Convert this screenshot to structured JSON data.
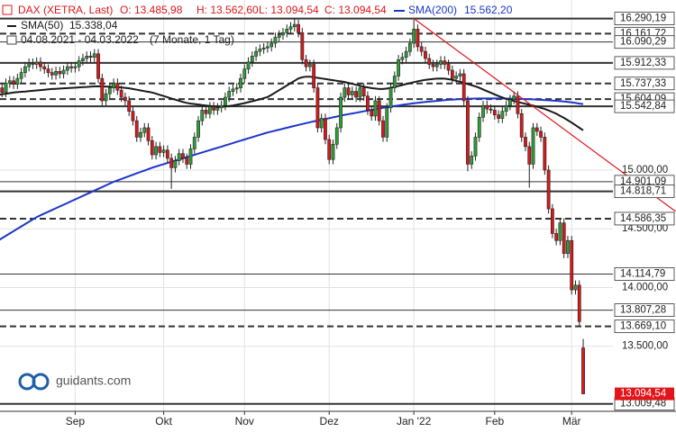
{
  "chart_data": {
    "type": "candlestick",
    "title": "DAX (XETRA, Last)",
    "quote_labels": [
      "O: 13.485,98",
      "H: 13.562,60",
      "L: 13.094,54",
      "C: 13.094,54"
    ],
    "range_label": "04.08.2021 - 04.03.2022",
    "range_note": "(7 Monate, 1 Tag)",
    "watermark": "guidants.com",
    "title_color": "#e0161b",
    "up_color": "#2f9e3a",
    "down_color": "#d7191c",
    "categories": [
      null,
      null,
      null,
      null,
      null,
      null,
      null,
      null,
      null,
      null,
      null,
      null,
      null,
      null,
      null,
      null,
      null,
      null,
      null,
      null,
      "Sep",
      null,
      null,
      null,
      null,
      null,
      null,
      null,
      null,
      null,
      null,
      null,
      null,
      null,
      null,
      null,
      null,
      null,
      null,
      null,
      null,
      null,
      null,
      "Okt",
      null,
      null,
      null,
      null,
      null,
      null,
      null,
      null,
      null,
      null,
      null,
      null,
      null,
      null,
      null,
      null,
      null,
      null,
      null,
      null,
      "Nov",
      null,
      null,
      null,
      null,
      null,
      null,
      null,
      null,
      null,
      null,
      null,
      null,
      null,
      null,
      null,
      null,
      null,
      null,
      null,
      null,
      null,
      "Dez",
      null,
      null,
      null,
      null,
      null,
      null,
      null,
      null,
      null,
      null,
      null,
      null,
      null,
      null,
      null,
      null,
      null,
      null,
      null,
      null,
      null,
      "Jan '22",
      null,
      null,
      null,
      null,
      null,
      null,
      null,
      null,
      null,
      null,
      null,
      null,
      null,
      null,
      null,
      null,
      null,
      null,
      null,
      null,
      "Feb",
      null,
      null,
      null,
      null,
      null,
      null,
      null,
      null,
      null,
      null,
      null,
      null,
      null,
      null,
      null,
      null,
      null,
      null,
      null,
      "Mär",
      null,
      null,
      null
    ],
    "open": [
      15720,
      15700,
      15660,
      15740,
      15760,
      15730,
      15780,
      15830,
      15880,
      15910,
      15900,
      15920,
      15880,
      15860,
      15830,
      15810,
      15840,
      15820,
      15850,
      15880,
      15870,
      15880,
      15930,
      15950,
      15970,
      15960,
      15990,
      15780,
      15590,
      15650,
      15700,
      15740,
      15680,
      15620,
      15590,
      15500,
      15420,
      15280,
      15320,
      15360,
      15250,
      15130,
      15200,
      15150,
      15170,
      15100,
      15020,
      15080,
      15140,
      15100,
      15050,
      15180,
      15280,
      15420,
      15510,
      15480,
      15540,
      15510,
      15530,
      15550,
      15620,
      15670,
      15690,
      15700,
      15780,
      15860,
      15920,
      15970,
      16010,
      16030,
      16040,
      16050,
      16080,
      16130,
      16150,
      16170,
      16200,
      16220,
      16240,
      16170,
      15940,
      15880,
      15900,
      15700,
      15360,
      15440,
      15260,
      15090,
      15220,
      15360,
      15620,
      15700,
      15640,
      15670,
      15620,
      15700,
      15630,
      15510,
      15460,
      15590,
      15420,
      15280,
      15530,
      15700,
      15800,
      15940,
      15960,
      16010,
      16080,
      16200,
      16050,
      16010,
      15950,
      15900,
      15880,
      15900,
      15930,
      15900,
      15850,
      15780,
      15800,
      15820,
      15590,
      15050,
      15120,
      15280,
      15450,
      15550,
      15520,
      15510,
      15470,
      15440,
      15500,
      15550,
      15600,
      15630,
      15480,
      15280,
      15200,
      15050,
      15360,
      15330,
      15280,
      15000,
      14670,
      14460,
      14400,
      14550,
      14290,
      14400,
      13980,
      14020,
      13485.98
    ],
    "high": [
      15760,
      15740,
      15780,
      15800,
      15800,
      15820,
      15870,
      15920,
      15950,
      15950,
      15960,
      15960,
      15920,
      15900,
      15870,
      15880,
      15880,
      15890,
      15920,
      15920,
      15920,
      15970,
      15990,
      16010,
      16010,
      16030,
      16030,
      15820,
      15690,
      15740,
      15780,
      15780,
      15720,
      15660,
      15630,
      15540,
      15460,
      15360,
      15400,
      15400,
      15290,
      15240,
      15240,
      15210,
      15210,
      15140,
      15120,
      15180,
      15180,
      15140,
      15220,
      15320,
      15460,
      15550,
      15550,
      15580,
      15580,
      15570,
      15590,
      15660,
      15710,
      15730,
      15740,
      15820,
      15900,
      15960,
      16010,
      16050,
      16070,
      16080,
      16090,
      16120,
      16170,
      16190,
      16210,
      16240,
      16260,
      16290.19,
      16280,
      16210,
      15980,
      15940,
      15940,
      15740,
      15480,
      15480,
      15300,
      15260,
      15400,
      15660,
      15740,
      15740,
      15710,
      15710,
      15740,
      15740,
      15670,
      15550,
      15630,
      15630,
      15460,
      15570,
      15740,
      15840,
      15980,
      16000,
      16050,
      16120,
      16280,
      16240,
      16090,
      16050,
      15990,
      15940,
      15940,
      15970,
      15970,
      15940,
      15890,
      15840,
      15860,
      15860,
      15630,
      15160,
      15320,
      15490,
      15590,
      15590,
      15560,
      15550,
      15510,
      15540,
      15590,
      15640,
      15670,
      15670,
      15520,
      15320,
      15240,
      15400,
      15400,
      15370,
      15320,
      15040,
      14710,
      14500,
      14590,
      14590,
      14440,
      14440,
      14060,
      14060,
      13562.6
    ],
    "low": [
      15660,
      15620,
      15620,
      15700,
      15690,
      15690,
      15740,
      15790,
      15840,
      15860,
      15860,
      15840,
      15820,
      15790,
      15770,
      15770,
      15780,
      15780,
      15810,
      15830,
      15830,
      15840,
      15890,
      15910,
      15920,
      15920,
      15740,
      15550,
      15550,
      15610,
      15660,
      15640,
      15580,
      15550,
      15460,
      15380,
      15240,
      15240,
      15280,
      15210,
      15090,
      15090,
      15110,
      15110,
      15060,
      14840,
      14980,
      15040,
      15060,
      15010,
      15010,
      15140,
      15240,
      15380,
      15440,
      15440,
      15470,
      15470,
      15490,
      15510,
      15580,
      15630,
      15650,
      15660,
      15740,
      15820,
      15880,
      15930,
      15970,
      15990,
      16000,
      16010,
      16040,
      16090,
      16110,
      16130,
      16160,
      16180,
      16130,
      15900,
      15840,
      15840,
      15660,
      15320,
      15320,
      15220,
      15050,
      15050,
      15180,
      15320,
      15580,
      15600,
      15600,
      15580,
      15580,
      15590,
      15470,
      15420,
      15420,
      15380,
      15240,
      15240,
      15490,
      15660,
      15760,
      15900,
      15920,
      15970,
      16040,
      16010,
      15970,
      15910,
      15860,
      15840,
      15840,
      15860,
      15860,
      15810,
      15740,
      15740,
      15760,
      15550,
      14990,
      15010,
      15080,
      15240,
      15410,
      15480,
      15480,
      15430,
      15400,
      15400,
      15460,
      15510,
      15560,
      15440,
      15240,
      15160,
      14850,
      15010,
      15290,
      15240,
      14960,
      14630,
      14420,
      14360,
      14360,
      14250,
      14250,
      13940,
      13940,
      13670,
      13094.54
    ],
    "close": [
      15700,
      15660,
      15740,
      15760,
      15730,
      15780,
      15830,
      15880,
      15910,
      15900,
      15920,
      15880,
      15860,
      15830,
      15810,
      15840,
      15820,
      15850,
      15880,
      15870,
      15880,
      15930,
      15950,
      15970,
      15960,
      15990,
      15780,
      15590,
      15650,
      15700,
      15740,
      15680,
      15620,
      15590,
      15500,
      15420,
      15280,
      15320,
      15360,
      15250,
      15130,
      15200,
      15150,
      15170,
      15100,
      15020,
      15080,
      15140,
      15100,
      15050,
      15180,
      15280,
      15420,
      15510,
      15480,
      15540,
      15510,
      15530,
      15550,
      15620,
      15670,
      15690,
      15700,
      15780,
      15860,
      15920,
      15970,
      16010,
      16030,
      16040,
      16050,
      16080,
      16130,
      16150,
      16170,
      16200,
      16220,
      16240,
      16170,
      15940,
      15880,
      15900,
      15700,
      15360,
      15440,
      15260,
      15090,
      15220,
      15360,
      15620,
      15700,
      15640,
      15670,
      15620,
      15700,
      15630,
      15510,
      15460,
      15590,
      15420,
      15280,
      15530,
      15700,
      15800,
      15940,
      15960,
      16010,
      16080,
      16200,
      16050,
      16010,
      15950,
      15900,
      15880,
      15900,
      15930,
      15900,
      15850,
      15780,
      15800,
      15820,
      15590,
      15050,
      15120,
      15280,
      15450,
      15550,
      15520,
      15510,
      15470,
      15440,
      15500,
      15550,
      15600,
      15630,
      15480,
      15280,
      15200,
      15050,
      15360,
      15330,
      15280,
      15000,
      14670,
      14460,
      14400,
      14550,
      14290,
      14400,
      13980,
      14020,
      13710,
      13094.54
    ],
    "indicators": [
      {
        "name": "SMA(200)",
        "value_label": "15.562,20",
        "color": "#1c35c9",
        "values": [
          14400,
          14420,
          14440,
          14460,
          14480,
          14500,
          14520,
          14540,
          14560,
          14580,
          14600,
          14615,
          14630,
          14645,
          14660,
          14675,
          14690,
          14705,
          14720,
          14735,
          14750,
          14765,
          14780,
          14795,
          14810,
          14825,
          14840,
          14855,
          14870,
          14885,
          14900,
          14912,
          14924,
          14936,
          14948,
          14960,
          14972,
          14984,
          14996,
          15008,
          15020,
          15030,
          15040,
          15050,
          15060,
          15070,
          15080,
          15090,
          15100,
          15110,
          15120,
          15130,
          15140,
          15150,
          15160,
          15170,
          15180,
          15190,
          15200,
          15210,
          15220,
          15230,
          15240,
          15250,
          15260,
          15270,
          15280,
          15290,
          15300,
          15310,
          15320,
          15328,
          15336,
          15344,
          15352,
          15360,
          15368,
          15376,
          15384,
          15392,
          15400,
          15407,
          15414,
          15421,
          15428,
          15435,
          15442,
          15449,
          15456,
          15463,
          15470,
          15476,
          15482,
          15488,
          15494,
          15500,
          15506,
          15512,
          15518,
          15524,
          15530,
          15535,
          15540,
          15545,
          15550,
          15555,
          15560,
          15564,
          15568,
          15572,
          15576,
          15580,
          15583,
          15586,
          15589,
          15592,
          15595,
          15598,
          15600,
          15602,
          15604,
          15606,
          15607,
          15608,
          15609,
          15610,
          15610,
          15610,
          15610,
          15610,
          15610,
          15610,
          15609,
          15608,
          15607,
          15606,
          15605,
          15604,
          15603,
          15602,
          15600,
          15598,
          15596,
          15594,
          15592,
          15590,
          15587,
          15584,
          15580,
          15576,
          15571,
          15566,
          15562.2
        ]
      },
      {
        "name": "SMA(50)",
        "value_label": "15.338,04",
        "color": "#1a1a1a",
        "values": [
          15640,
          15645,
          15650,
          15655,
          15660,
          15663,
          15666,
          15669,
          15672,
          15675,
          15678,
          15681,
          15684,
          15687,
          15690,
          15692,
          15694,
          15696,
          15698,
          15700,
          15702,
          15704,
          15706,
          15708,
          15710,
          15712,
          15713,
          15712,
          15711,
          15710,
          15708,
          15706,
          15703,
          15700,
          15696,
          15690,
          15684,
          15678,
          15672,
          15666,
          15660,
          15650,
          15640,
          15630,
          15620,
          15610,
          15600,
          15590,
          15580,
          15572,
          15566,
          15562,
          15558,
          15554,
          15550,
          15546,
          15543,
          15540,
          15540,
          15542,
          15545,
          15550,
          15556,
          15563,
          15570,
          15578,
          15586,
          15594,
          15602,
          15612,
          15622,
          15640,
          15660,
          15680,
          15700,
          15720,
          15740,
          15760,
          15780,
          15790,
          15795,
          15795,
          15790,
          15785,
          15780,
          15775,
          15770,
          15765,
          15760,
          15755,
          15750,
          15742,
          15734,
          15726,
          15718,
          15710,
          15704,
          15698,
          15694,
          15690,
          15690,
          15694,
          15700,
          15708,
          15716,
          15724,
          15732,
          15740,
          15748,
          15756,
          15762,
          15768,
          15772,
          15776,
          15778,
          15780,
          15778,
          15774,
          15768,
          15760,
          15752,
          15742,
          15732,
          15722,
          15712,
          15700,
          15686,
          15672,
          15658,
          15644,
          15630,
          15618,
          15606,
          15596,
          15588,
          15580,
          15572,
          15564,
          15556,
          15548,
          15540,
          15530,
          15520,
          15508,
          15494,
          15480,
          15462,
          15444,
          15424,
          15404,
          15382,
          15360,
          15338.04
        ]
      }
    ],
    "trendline": {
      "color": "#e0161b",
      "x": [
        108,
        176
      ],
      "y": [
        16290.19,
        14648
      ]
    },
    "levels": [
      {
        "value": 16290.19,
        "label": "16.290,19",
        "style": "solid"
      },
      {
        "value": 16161.72,
        "label": "16.161,72",
        "style": "dashed"
      },
      {
        "value": 16090.29,
        "label": "16.090,29",
        "style": "thin"
      },
      {
        "value": 15912.33,
        "label": "15.912,33",
        "style": "solid"
      },
      {
        "value": 15737.33,
        "label": "15.737,33",
        "style": "dashed"
      },
      {
        "value": 15604.09,
        "label": "15.604,09",
        "style": "dashed"
      },
      {
        "value": 15542.84,
        "label": "15.542,84",
        "style": "solid"
      },
      {
        "value": 14901.09,
        "label": "14.901,09",
        "style": "thin"
      },
      {
        "value": 14818.71,
        "label": "14.818,71",
        "style": "solid"
      },
      {
        "value": 14586.35,
        "label": "14.586,35",
        "style": "dashed"
      },
      {
        "value": 14114.79,
        "label": "14.114,79",
        "style": "thin"
      },
      {
        "value": 13807.28,
        "label": "13.807,28",
        "style": "thin"
      },
      {
        "value": 13669.1,
        "label": "13.669,10",
        "style": "dashed"
      },
      {
        "value": 13009.48,
        "label": "13.009,48",
        "style": "solid"
      }
    ],
    "last": {
      "value": 13094.54,
      "label": "13.094,54",
      "color": "#e0161b"
    },
    "ylim": [
      12946,
      16448
    ],
    "yticks": [
      {
        "value": 15000,
        "label": "15.000,00"
      },
      {
        "value": 14500,
        "label": "14.500,00"
      },
      {
        "value": 14000,
        "label": "14.000,00"
      },
      {
        "value": 13500,
        "label": "13.500,00"
      }
    ],
    "grid": true
  }
}
